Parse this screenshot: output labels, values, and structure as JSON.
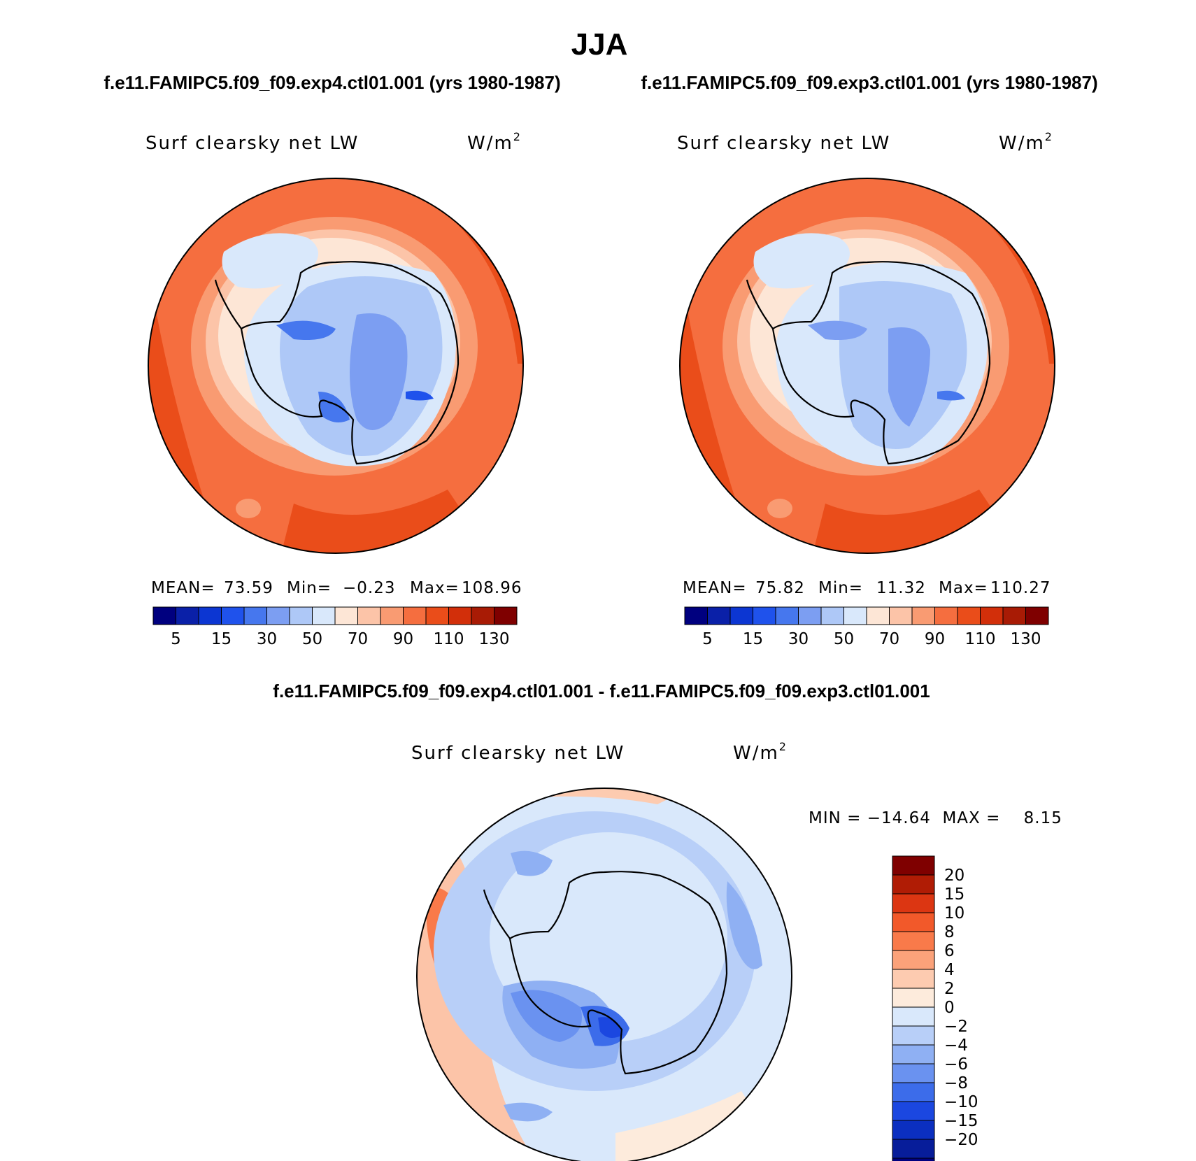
{
  "title": "JJA",
  "top_panels": [
    {
      "case": "f.e11.FAMIPC5.f09_f09.exp4.ctl01.001 (yrs 1980-1987)",
      "variable": "Surf clearsky net LW",
      "units": "W/m",
      "units_sup": "2",
      "stats": {
        "mean_label": "MEAN=",
        "mean": "73.59",
        "min_label": "Min=",
        "min": "−0.23",
        "max_label": "Max=",
        "max": "108.96"
      }
    },
    {
      "case": "f.e11.FAMIPC5.f09_f09.exp3.ctl01.001 (yrs 1980-1987)",
      "variable": "Surf clearsky net LW",
      "units": "W/m",
      "units_sup": "2",
      "stats": {
        "mean_label": "MEAN=",
        "mean": "75.82",
        "min_label": "Min=",
        "min": "11.32",
        "max_label": "Max=",
        "max": "110.27"
      }
    }
  ],
  "top_colorbar": {
    "colors": [
      "#00007f",
      "#0a20a8",
      "#0c36d2",
      "#1f52ec",
      "#4677ee",
      "#7c9ef2",
      "#aec8f7",
      "#d9e8fb",
      "#fde6d6",
      "#fcc4a8",
      "#f99b72",
      "#f56e3f",
      "#ea4d1a",
      "#d22f0a",
      "#a81b05",
      "#7f0000"
    ],
    "tick_labels": [
      "5",
      "15",
      "30",
      "50",
      "70",
      "90",
      "110",
      "130"
    ]
  },
  "diff_panel": {
    "title": "f.e11.FAMIPC5.f09_f09.exp4.ctl01.001 - f.e11.FAMIPC5.f09_f09.exp3.ctl01.001",
    "variable": "Surf clearsky net LW",
    "units": "W/m",
    "units_sup": "2",
    "minmax": "MIN = −14.64  MAX =    8.15"
  },
  "diff_colorbar": {
    "colors_top_to_bottom": [
      "#7f0000",
      "#b01c05",
      "#dc3612",
      "#f2592a",
      "#f97a4a",
      "#fba27a",
      "#fdcbb0",
      "#fdebdc",
      "#d9e8fb",
      "#b8cff8",
      "#8fb0f3",
      "#6a92f0",
      "#3c6cea",
      "#1b47e0",
      "#0b2fc0",
      "#071d9a",
      "#00007f"
    ],
    "tick_labels": [
      "20",
      "15",
      "10",
      "8",
      "6",
      "4",
      "2",
      "0",
      "−2",
      "−4",
      "−6",
      "−8",
      "−10",
      "−15",
      "−20"
    ]
  }
}
